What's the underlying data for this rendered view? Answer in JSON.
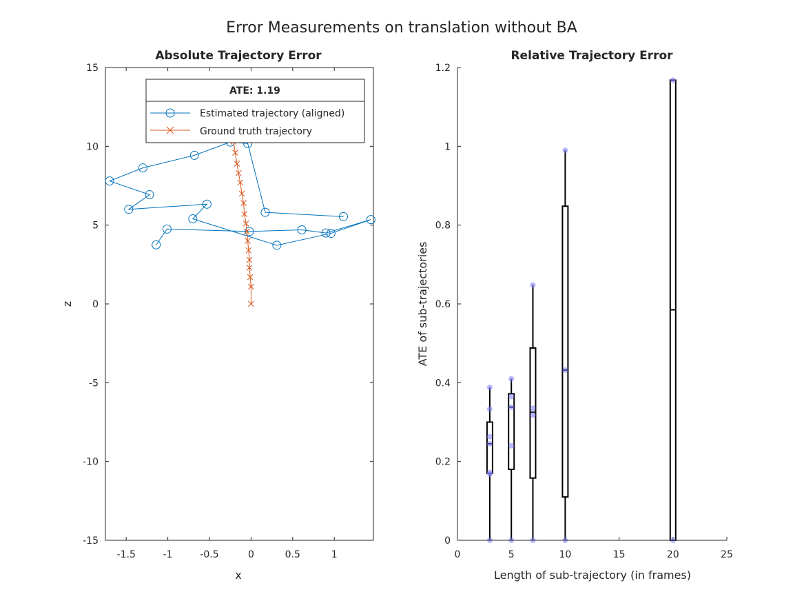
{
  "figure_title": "Error Measurements on translation without BA",
  "chart_data": [
    {
      "type": "line",
      "title": "Absolute Trajectory Error",
      "xlabel": "x",
      "ylabel": "z",
      "xlim": [
        -1.75,
        1.47
      ],
      "ylim": [
        -15,
        15
      ],
      "xticks": [
        -1.5,
        -1,
        -0.5,
        0,
        0.5,
        1
      ],
      "yticks": [
        -15,
        -10,
        -5,
        0,
        5,
        10,
        15
      ],
      "xtick_labels": [
        "-1.5",
        "-1",
        "-0.5",
        "0",
        "0.5",
        "1"
      ],
      "ytick_labels": [
        "-15",
        "-10",
        "-5",
        "0",
        "5",
        "10",
        "15"
      ],
      "legend": {
        "title": "ATE: 1.19",
        "placement": "top-right",
        "entries": [
          "Estimated trajectory (aligned)",
          "Ground truth trajectory"
        ]
      },
      "series": [
        {
          "name": "Estimated trajectory (aligned)",
          "color": "#0072BD",
          "marker": "circle",
          "points": [
            [
              -1.14,
              3.75
            ],
            [
              -1.01,
              4.75
            ],
            [
              -0.02,
              4.6
            ],
            [
              0.61,
              4.7
            ],
            [
              0.9,
              4.5
            ],
            [
              1.44,
              5.35
            ],
            [
              0.96,
              4.48
            ],
            [
              0.31,
              3.72
            ],
            [
              -0.7,
              5.4
            ],
            [
              -0.53,
              6.33
            ],
            [
              -1.47,
              6.0
            ],
            [
              -1.22,
              6.93
            ],
            [
              -1.7,
              7.8
            ],
            [
              -1.3,
              8.63
            ],
            [
              -0.68,
              9.43
            ],
            [
              -0.25,
              10.27
            ],
            [
              -0.04,
              10.18
            ],
            [
              0.17,
              5.81
            ],
            [
              1.11,
              5.54
            ]
          ]
        },
        {
          "name": "Ground truth trajectory",
          "color": "#D95319",
          "marker": "x",
          "points": [
            [
              0.0,
              0.0
            ],
            [
              0.0,
              1.1
            ],
            [
              -0.01,
              1.7
            ],
            [
              -0.02,
              2.3
            ],
            [
              -0.02,
              2.8
            ],
            [
              -0.03,
              3.4
            ],
            [
              -0.04,
              4.0
            ],
            [
              -0.05,
              4.6
            ],
            [
              -0.06,
              5.1
            ],
            [
              -0.08,
              5.7
            ],
            [
              -0.09,
              6.4
            ],
            [
              -0.11,
              7.0
            ],
            [
              -0.13,
              7.7
            ],
            [
              -0.15,
              8.3
            ],
            [
              -0.17,
              8.9
            ],
            [
              -0.19,
              9.6
            ],
            [
              -0.21,
              10.3
            ],
            [
              -0.22,
              11.2
            ]
          ]
        }
      ]
    },
    {
      "type": "box",
      "title": "Relative Trajectory Error",
      "xlabel": "Length of sub-trajectory (in frames)",
      "ylabel": "ATE of sub-trajectories",
      "xlim": [
        0,
        25
      ],
      "ylim": [
        0,
        1.2
      ],
      "xticks": [
        0,
        5,
        10,
        15,
        20,
        25
      ],
      "yticks": [
        0,
        0.2,
        0.4,
        0.6,
        0.8,
        1.0,
        1.2
      ],
      "xtick_labels": [
        "0",
        "5",
        "10",
        "15",
        "20",
        "25"
      ],
      "ytick_labels": [
        "0",
        "0.2",
        "0.4",
        "0.6",
        "0.8",
        "1",
        "1.2"
      ],
      "box_color": "#000000",
      "point_color": "#8080FF",
      "boxes": [
        {
          "x": 3,
          "min": 0,
          "q1": 0.17,
          "median": 0.245,
          "q3": 0.3,
          "max": 0.388,
          "points": [
            0,
            0.168,
            0.172,
            0.245,
            0.263,
            0.333,
            0.388
          ]
        },
        {
          "x": 5,
          "min": 0,
          "q1": 0.18,
          "median": 0.338,
          "q3": 0.372,
          "max": 0.41,
          "points": [
            0,
            0.24,
            0.338,
            0.365,
            0.41
          ]
        },
        {
          "x": 7,
          "min": 0,
          "q1": 0.158,
          "median": 0.325,
          "q3": 0.488,
          "max": 0.648,
          "points": [
            0,
            0.318,
            0.335,
            0.648
          ]
        },
        {
          "x": 10,
          "min": 0,
          "q1": 0.11,
          "median": 0.432,
          "q3": 0.848,
          "max": 0.99,
          "points": [
            0,
            0.432,
            0.99
          ]
        },
        {
          "x": 20,
          "min": 0,
          "q1": 0,
          "median": 0.585,
          "q3": 1.168,
          "max": 1.168,
          "points": [
            0,
            1.168
          ]
        }
      ]
    }
  ]
}
